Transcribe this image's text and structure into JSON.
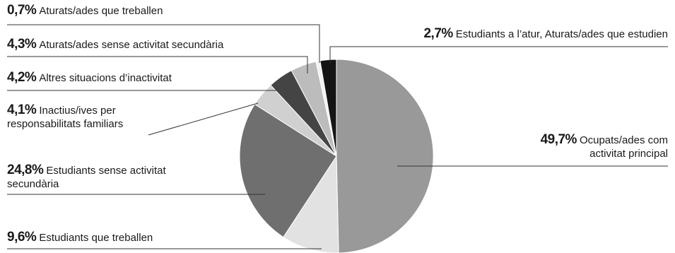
{
  "chart_data": {
    "type": "pie",
    "start_angle_deg": 0,
    "direction": "clockwise",
    "slices": [
      {
        "value": 49.7,
        "percent_label": "49,7%",
        "label_line1": "Ocupats/ades com",
        "label_line2": "activitat principal",
        "color": "#999999"
      },
      {
        "value": 9.6,
        "percent_label": "9,6%",
        "label_line1": "Estudiants que treballen",
        "label_line2": "",
        "color": "#e2e2e2"
      },
      {
        "value": 24.8,
        "percent_label": "24,8%",
        "label_line1": "Estudiants sense activitat",
        "label_line2": "secundària",
        "color": "#6f6f6f"
      },
      {
        "value": 4.1,
        "percent_label": "4,1%",
        "label_line1": "Inactius/ives per",
        "label_line2": "responsabilitats familiars",
        "color": "#d0d0d0"
      },
      {
        "value": 4.2,
        "percent_label": "4,2%",
        "label_line1": "Altres situacions d’inactivitat",
        "label_line2": "",
        "color": "#444444"
      },
      {
        "value": 4.3,
        "percent_label": "4,3%",
        "label_line1": "Aturats/ades sense activitat secundària",
        "label_line2": "",
        "color": "#bcbcbc"
      },
      {
        "value": 0.7,
        "percent_label": "0,7%",
        "label_line1": "Aturats/ades que treballen",
        "label_line2": "",
        "color": "#f2f2f2"
      },
      {
        "value": 2.7,
        "percent_label": "2,7%",
        "label_line1": "Estudiants a l’atur, Aturats/ades que estudien",
        "label_line2": "",
        "color": "#141414"
      }
    ]
  }
}
